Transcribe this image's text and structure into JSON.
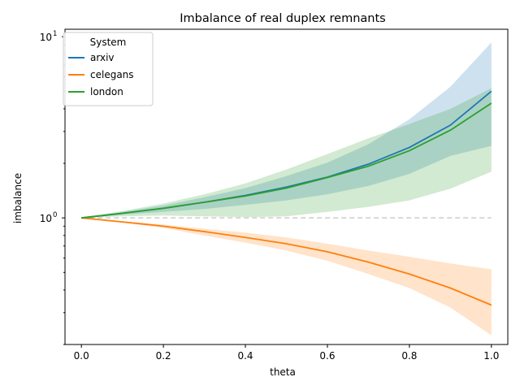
{
  "chart_data": {
    "type": "line",
    "title": "Imbalance of real duplex remnants",
    "xlabel": "theta",
    "ylabel": "imbalance",
    "xlim": [
      -0.04,
      1.04
    ],
    "ylim": [
      0.2,
      11
    ],
    "yscale": "log",
    "grid": false,
    "legend": {
      "title": "System",
      "placement": "top-left"
    },
    "x_ticks": [
      {
        "value": 0.0,
        "label": "0.0"
      },
      {
        "value": 0.2,
        "label": "0.2"
      },
      {
        "value": 0.4,
        "label": "0.4"
      },
      {
        "value": 0.6,
        "label": "0.6"
      },
      {
        "value": 0.8,
        "label": "0.8"
      },
      {
        "value": 1.0,
        "label": "1.0"
      }
    ],
    "y_ticks": [
      {
        "value": 1,
        "label": "10",
        "sup": "0"
      },
      {
        "value": 10,
        "label": "10",
        "sup": "1"
      }
    ],
    "reference_line": {
      "y": 1,
      "style": "dashed",
      "color": "#cccccc"
    },
    "series": [
      {
        "name": "arxiv",
        "color": "#1f77b4",
        "x": [
          0.0,
          0.1,
          0.2,
          0.3,
          0.4,
          0.5,
          0.6,
          0.7,
          0.8,
          0.9,
          1.0
        ],
        "y": [
          1.0,
          1.06,
          1.13,
          1.22,
          1.33,
          1.48,
          1.68,
          1.98,
          2.45,
          3.25,
          5.0
        ],
        "band_low": [
          1.0,
          1.04,
          1.08,
          1.12,
          1.18,
          1.25,
          1.35,
          1.5,
          1.75,
          2.2,
          2.5
        ],
        "band_high": [
          1.0,
          1.08,
          1.17,
          1.3,
          1.46,
          1.7,
          2.02,
          2.55,
          3.5,
          5.3,
          9.3
        ]
      },
      {
        "name": "celegans",
        "color": "#ff7f0e",
        "x": [
          0.0,
          0.1,
          0.2,
          0.3,
          0.4,
          0.5,
          0.6,
          0.7,
          0.8,
          0.9,
          1.0
        ],
        "y": [
          1.0,
          0.95,
          0.9,
          0.84,
          0.78,
          0.72,
          0.65,
          0.57,
          0.49,
          0.41,
          0.33
        ],
        "band_low": [
          1.0,
          0.94,
          0.88,
          0.8,
          0.73,
          0.66,
          0.58,
          0.49,
          0.41,
          0.32,
          0.225
        ],
        "band_high": [
          1.0,
          0.96,
          0.92,
          0.87,
          0.83,
          0.78,
          0.72,
          0.66,
          0.61,
          0.56,
          0.52
        ]
      },
      {
        "name": "london",
        "color": "#2ca02c",
        "x": [
          0.0,
          0.1,
          0.2,
          0.3,
          0.4,
          0.5,
          0.6,
          0.7,
          0.8,
          0.9,
          1.0
        ],
        "y": [
          1.0,
          1.06,
          1.13,
          1.22,
          1.32,
          1.46,
          1.67,
          1.93,
          2.35,
          3.05,
          4.3
        ],
        "band_low": [
          1.0,
          1.02,
          1.03,
          1.02,
          1.01,
          1.02,
          1.08,
          1.15,
          1.25,
          1.45,
          1.8
        ],
        "band_high": [
          1.0,
          1.09,
          1.2,
          1.35,
          1.55,
          1.85,
          2.25,
          2.75,
          3.3,
          4.0,
          5.2
        ]
      }
    ]
  }
}
